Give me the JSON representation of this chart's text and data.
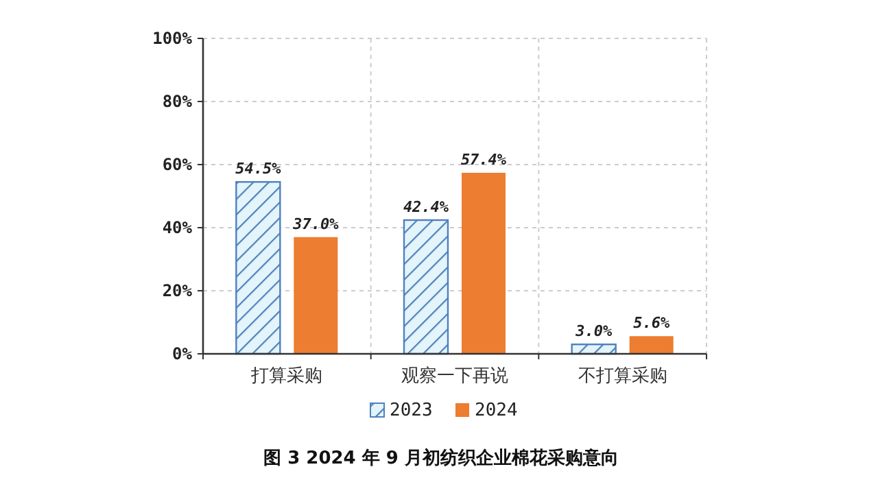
{
  "chart_data": {
    "type": "bar",
    "title": "图 3  2024 年 9 月初纺织企业棉花采购意向",
    "categories": [
      "打算采购",
      "观察一下再说",
      "不打算采购"
    ],
    "series": [
      {
        "name": "2023",
        "color": "#4f81bd",
        "values": [
          54.5,
          42.4,
          3.0
        ],
        "value_labels": [
          "54.5%",
          "42.4%",
          "3.0%"
        ]
      },
      {
        "name": "2024",
        "color": "#ed7d31",
        "values": [
          37.0,
          57.4,
          5.6
        ],
        "value_labels": [
          "37.0%",
          "57.4%",
          "5.6%"
        ]
      }
    ],
    "ylim": [
      0,
      100
    ],
    "yticks": [
      {
        "value": 0,
        "label": "0%"
      },
      {
        "value": 20,
        "label": "20%"
      },
      {
        "value": 40,
        "label": "40%"
      },
      {
        "value": 60,
        "label": "60%"
      },
      {
        "value": 80,
        "label": "80%"
      },
      {
        "value": 100,
        "label": "100%"
      }
    ],
    "grid": true,
    "legend": "bottom"
  }
}
